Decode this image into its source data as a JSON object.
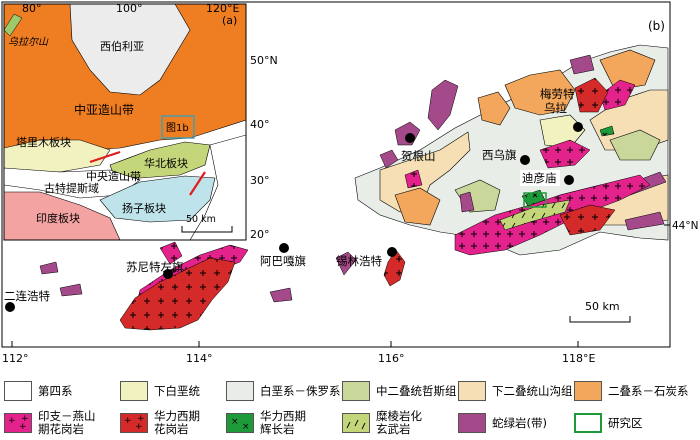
{
  "inset": {
    "panel_label": "(a)",
    "lon_ticks": [
      "80°",
      "100°",
      "120°E"
    ],
    "lat_ticks": [
      "50°N",
      "40°",
      "30°",
      "20°"
    ],
    "regions": {
      "siberia": "西伯利亚",
      "caob": "中亚造山带",
      "tarim": "塔里木板块",
      "north_china": "华北板块",
      "central_orogen": "中央造山带",
      "tethys": "古特提斯域",
      "yangtze": "扬子板块",
      "india": "印度板块",
      "urals": "乌拉尔山"
    },
    "figure_ref": "图1b",
    "scale": "50 km"
  },
  "main": {
    "panel_label": "(b)",
    "lon_ticks": [
      "112°",
      "114°",
      "116°",
      "118°E"
    ],
    "lat_tick": "44°N",
    "scale": "50 km",
    "places": [
      {
        "name": "梅劳特\n乌拉"
      },
      {
        "name": "贺根山"
      },
      {
        "name": "西乌旗"
      },
      {
        "name": "迪彦庙"
      },
      {
        "name": "阿巴嘎旗"
      },
      {
        "name": "锡林浩特"
      },
      {
        "name": "苏尼特左旗"
      },
      {
        "name": "二连浩特"
      }
    ]
  },
  "legend": [
    {
      "label": "第四系",
      "color": "#ffffff"
    },
    {
      "label": "下白垩统",
      "color": "#f2f2c0"
    },
    {
      "label": "白垩系－侏罗系",
      "color": "#e8ede8"
    },
    {
      "label": "中二叠统哲斯组",
      "color": "#c9d79a"
    },
    {
      "label": "下二叠统山沟组",
      "color": "#f6dfb4"
    },
    {
      "label": "二叠系－石炭系",
      "color": "#f2a75c"
    },
    {
      "label": "印支－燕山\n期花岗岩",
      "color": "#e3228c"
    },
    {
      "label": "华力西期\n花岗岩",
      "color": "#d42a2a"
    },
    {
      "label": "华力西期\n辉长岩",
      "color": "#1f9a3a"
    },
    {
      "label": "糜棱岩化\n玄武岩",
      "color": "#c4d67a"
    },
    {
      "label": "蛇绿岩(带)",
      "color": "#a44a8a"
    },
    {
      "label": "研究区",
      "color": "#ffffff"
    }
  ]
}
